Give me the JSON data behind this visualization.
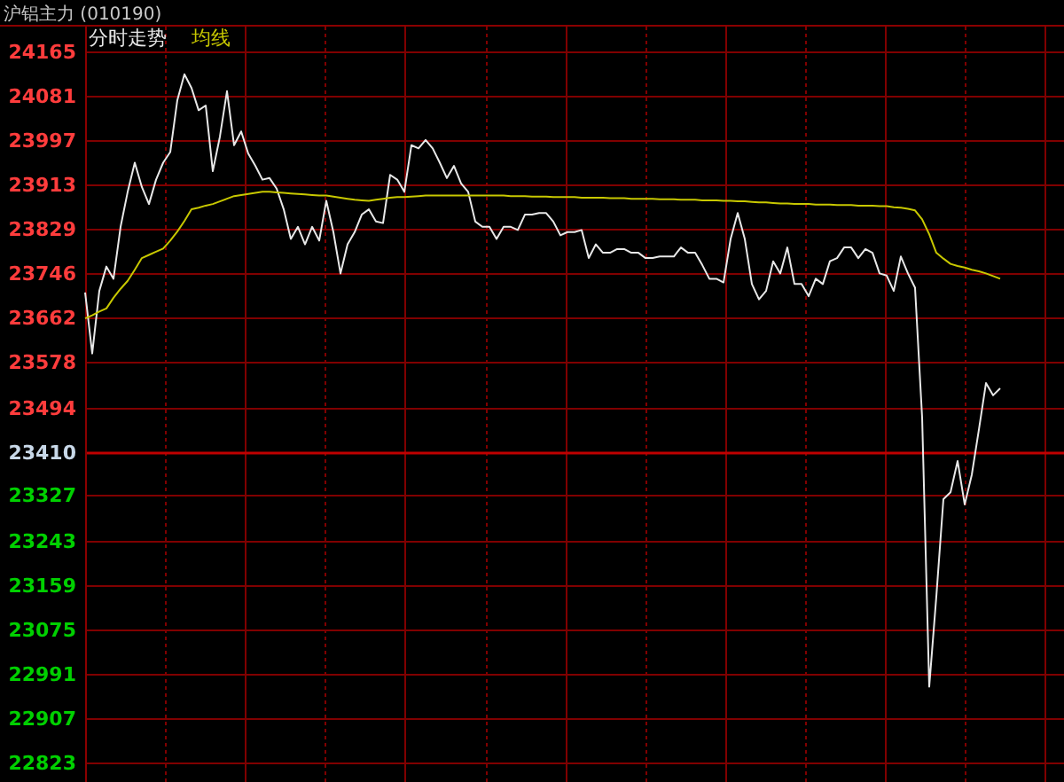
{
  "chart_data": {
    "type": "line",
    "title": "沪铝主力 (010190)",
    "grid": true,
    "tick_labels": "y",
    "categories": [
      null,
      null,
      null,
      null,
      null,
      null,
      null,
      null,
      null,
      null,
      null,
      null,
      null,
      null,
      null,
      null,
      null,
      null,
      null,
      null,
      null,
      null,
      null,
      null,
      null,
      null,
      null,
      null,
      null,
      null,
      null,
      null,
      null,
      null,
      null,
      null,
      null,
      null,
      null,
      null,
      null,
      null,
      null,
      null,
      null,
      null,
      null,
      null,
      null,
      null,
      null,
      null,
      null,
      null,
      null,
      null,
      null,
      null,
      null,
      null,
      null,
      null,
      null,
      null,
      null,
      null,
      null,
      null,
      null,
      null,
      null,
      null,
      null,
      null,
      null,
      null,
      null,
      null,
      null,
      null,
      null,
      null,
      null,
      null,
      null,
      null,
      null,
      null,
      null,
      null,
      null,
      null,
      null,
      null,
      null,
      null,
      null,
      null,
      null,
      null,
      null,
      null,
      null,
      null,
      null,
      null,
      null,
      null,
      null,
      null,
      null,
      null,
      null,
      null,
      null,
      null,
      null,
      null,
      null,
      null,
      null,
      null,
      null,
      null,
      null,
      null,
      null,
      null,
      null,
      null,
      null,
      null,
      null,
      null,
      null,
      null,
      null,
      null,
      null
    ],
    "ylim": [
      22823,
      24165
    ],
    "yticks": [
      24165,
      24081,
      23997,
      23913,
      23829,
      23746,
      23662,
      23578,
      23494,
      23410,
      23327,
      23243,
      23159,
      23075,
      22991,
      22907,
      22823
    ],
    "ref_lines": [
      {
        "axis": "y",
        "value": 23410,
        "color": "#c00000"
      }
    ],
    "series": [
      {
        "name": "分时走势",
        "color": "#e8e8e8",
        "values": [
          23710,
          23595,
          23713,
          23759,
          23736,
          23834,
          23900,
          23955,
          23909,
          23877,
          23923,
          23955,
          23975,
          24073,
          24122,
          24096,
          24054,
          24063,
          23939,
          24004,
          24090,
          23988,
          24014,
          23972,
          23949,
          23923,
          23926,
          23906,
          23867,
          23811,
          23834,
          23801,
          23834,
          23808,
          23883,
          23824,
          23746,
          23801,
          23824,
          23857,
          23867,
          23844,
          23841,
          23932,
          23923,
          23900,
          23988,
          23982,
          23998,
          23982,
          23955,
          23926,
          23949,
          23916,
          23900,
          23844,
          23834,
          23834,
          23811,
          23834,
          23834,
          23828,
          23857,
          23857,
          23860,
          23860,
          23844,
          23818,
          23824,
          23824,
          23828,
          23775,
          23801,
          23785,
          23785,
          23792,
          23792,
          23785,
          23785,
          23775,
          23775,
          23778,
          23778,
          23778,
          23795,
          23785,
          23785,
          23762,
          23736,
          23736,
          23729,
          23811,
          23860,
          23811,
          23726,
          23697,
          23713,
          23769,
          23746,
          23795,
          23726,
          23726,
          23703,
          23736,
          23726,
          23769,
          23775,
          23795,
          23795,
          23775,
          23792,
          23785,
          23746,
          23742,
          23713,
          23778,
          23746,
          23719,
          23474,
          22966,
          23136,
          23320,
          23333,
          23392,
          23310,
          23366,
          23451,
          23539,
          23516,
          23529,
          null,
          null,
          null,
          null,
          null,
          null,
          null,
          null,
          null
        ]
      },
      {
        "name": "均线",
        "color": "#c8c800",
        "values": [
          23661,
          23667,
          23674,
          23680,
          23700,
          23717,
          23732,
          23753,
          23775,
          23781,
          23787,
          23793,
          23808,
          23825,
          23845,
          23867,
          23870,
          23874,
          23877,
          23882,
          23887,
          23892,
          23894,
          23896,
          23898,
          23900,
          23900,
          23899,
          23898,
          23897,
          23896,
          23895,
          23894,
          23893,
          23893,
          23891,
          23889,
          23887,
          23885,
          23884,
          23883,
          23885,
          23887,
          23889,
          23890,
          23890,
          23891,
          23892,
          23893,
          23893,
          23893,
          23893,
          23893,
          23893,
          23893,
          23893,
          23893,
          23893,
          23893,
          23893,
          23892,
          23892,
          23892,
          23891,
          23891,
          23891,
          23890,
          23890,
          23890,
          23890,
          23889,
          23889,
          23889,
          23889,
          23888,
          23888,
          23888,
          23887,
          23887,
          23887,
          23887,
          23886,
          23886,
          23886,
          23885,
          23885,
          23885,
          23884,
          23884,
          23884,
          23883,
          23883,
          23882,
          23882,
          23881,
          23880,
          23880,
          23879,
          23878,
          23878,
          23877,
          23877,
          23877,
          23876,
          23876,
          23876,
          23875,
          23875,
          23875,
          23874,
          23874,
          23874,
          23873,
          23873,
          23871,
          23870,
          23868,
          23865,
          23848,
          23820,
          23785,
          23774,
          23764,
          23760,
          23757,
          23753,
          23750,
          23746,
          23741,
          23736,
          null,
          null,
          null,
          null,
          null,
          null,
          null,
          null,
          null
        ]
      }
    ]
  }
}
